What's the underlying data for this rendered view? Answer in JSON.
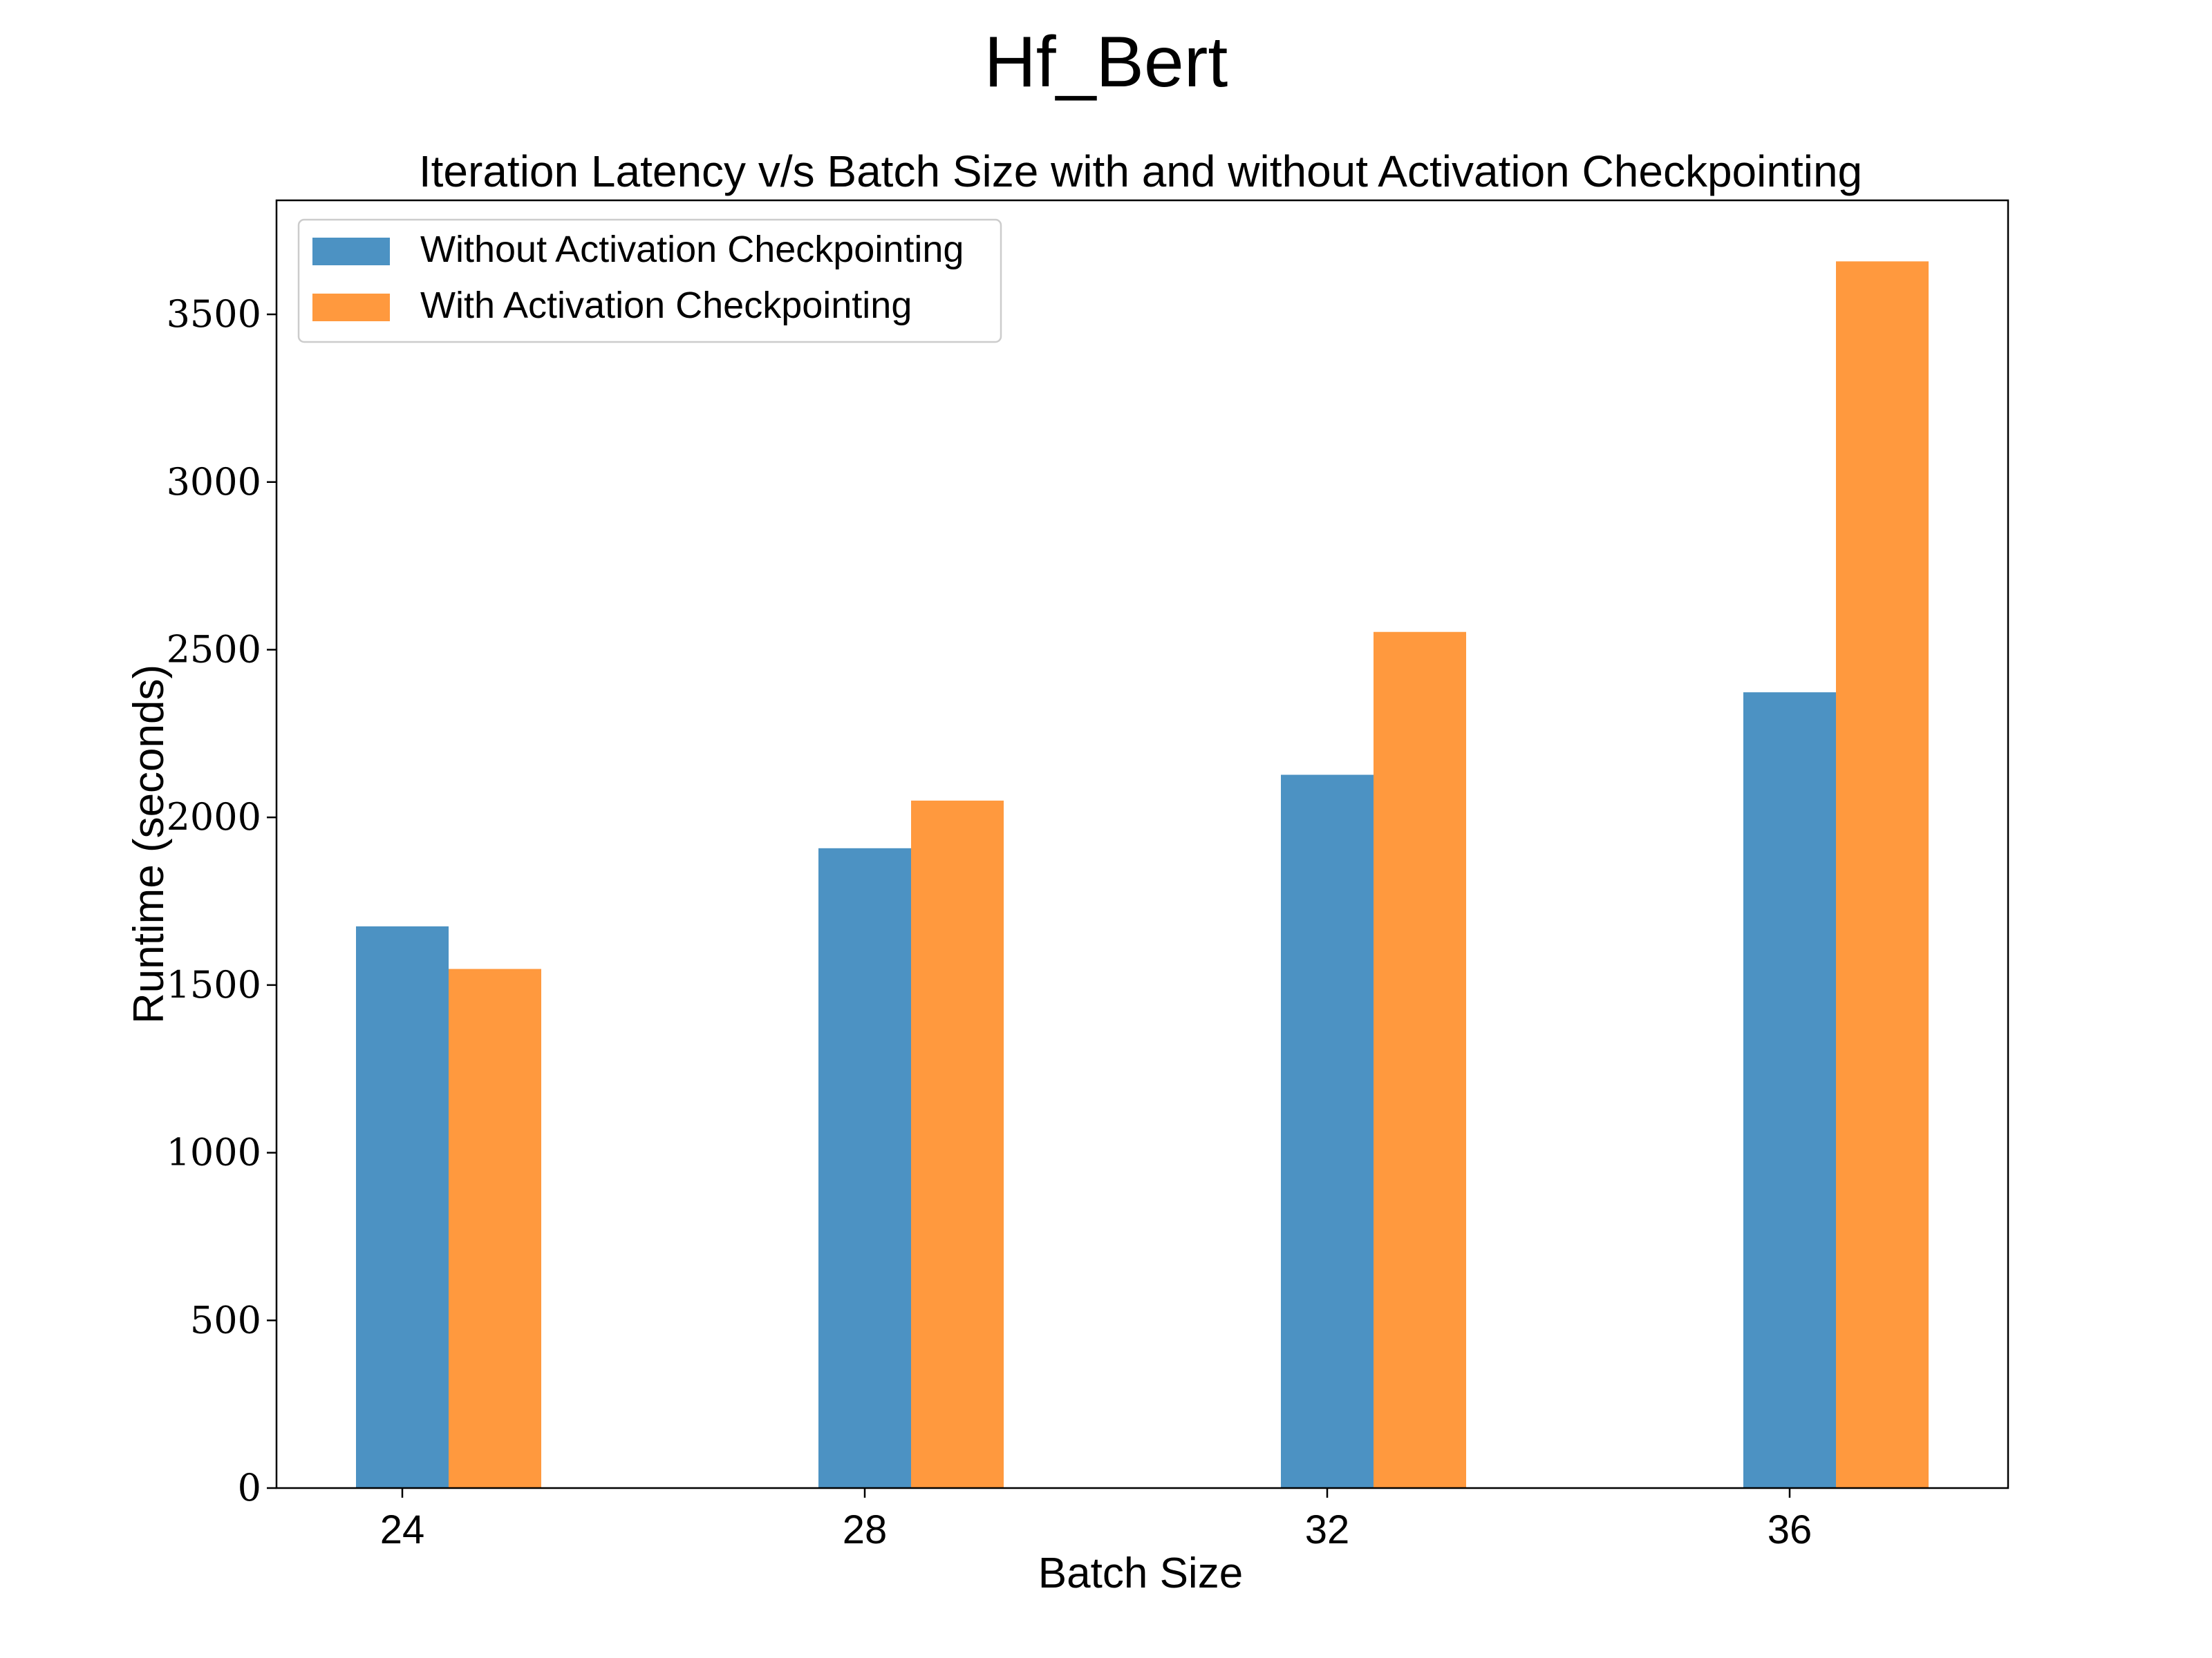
{
  "figure": {
    "suptitle": "Hf_Bert"
  },
  "chart_data": {
    "type": "bar",
    "title": "Iteration Latency v/s Batch Size with and without Activation Checkpointing",
    "xlabel": "Batch Size",
    "ylabel": "Runtime (seconds)",
    "categories": [
      "24",
      "28",
      "32",
      "36"
    ],
    "series": [
      {
        "name": "Without Activation Checkpointing",
        "color": "#4c92c3",
        "values": [
          1675,
          1908,
          2127,
          2373
        ]
      },
      {
        "name": "With Activation Checkpointing",
        "color": "#ff993e",
        "values": [
          1548,
          2050,
          2553,
          3658
        ]
      }
    ],
    "ylim": [
      0,
      3840
    ],
    "yticks": [
      "0",
      "500",
      "1000",
      "1500",
      "2000",
      "2500",
      "3000",
      "3500"
    ],
    "legend": "top-left",
    "grid": false
  }
}
